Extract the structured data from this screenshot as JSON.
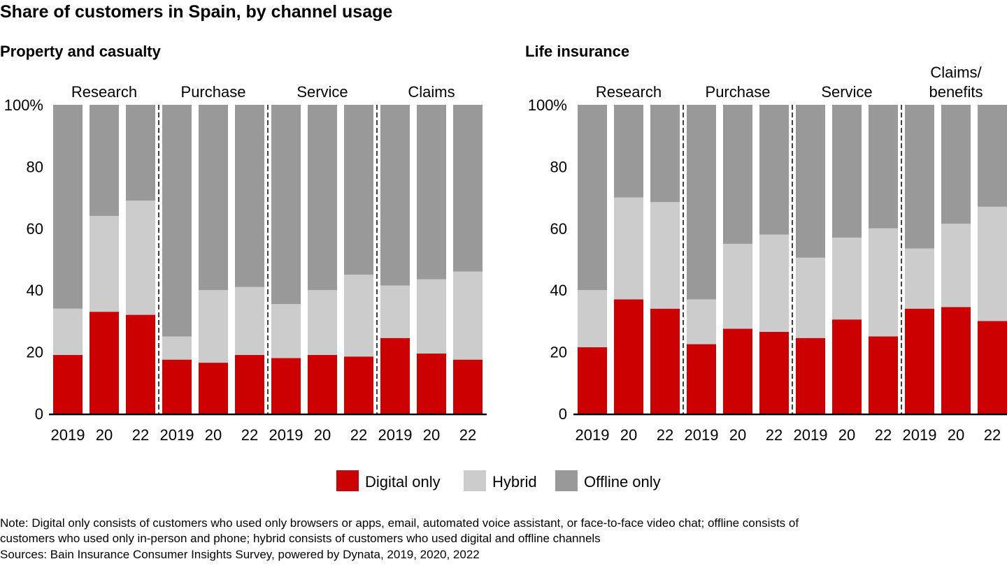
{
  "title": "Share of customers in Spain, by channel usage",
  "colors": {
    "digital": "#cc0000",
    "hybrid": "#cccccc",
    "offline": "#999999",
    "axis": "#000000"
  },
  "legend": {
    "position": "bottom-center",
    "items": [
      {
        "label": "Digital only",
        "color": "#cc0000"
      },
      {
        "label": "Hybrid",
        "color": "#cccccc"
      },
      {
        "label": "Offline only",
        "color": "#999999"
      }
    ]
  },
  "notes": {
    "note_line1": "Note: Digital only consists of customers who used only browsers or apps, email, automated voice assistant, or face-to-face video chat; offline consists of",
    "note_line2": "customers who used only in-person and phone; hybrid consists of customers who used digital and offline channels",
    "sources": "Sources: Bain Insurance Consumer Insights Survey, powered by Dynata, 2019, 2020, 2022"
  },
  "chart_data": [
    {
      "type": "bar",
      "stacked": true,
      "title": "Property and casualty",
      "ylim": [
        0,
        100
      ],
      "yticks": [
        "0",
        "20",
        "40",
        "60",
        "80",
        "100%"
      ],
      "yvalues": [
        0,
        20,
        40,
        60,
        80,
        100
      ],
      "groups": [
        {
          "label": "Research",
          "categories": [
            "2019",
            "20",
            "22"
          ],
          "digital": [
            19,
            33,
            32
          ],
          "hybrid": [
            15,
            31,
            37
          ],
          "offline": [
            66,
            36,
            31
          ]
        },
        {
          "label": "Purchase",
          "categories": [
            "2019",
            "20",
            "22"
          ],
          "digital": [
            17.5,
            16.5,
            19
          ],
          "hybrid": [
            7.5,
            23.5,
            22
          ],
          "offline": [
            75,
            60,
            59
          ]
        },
        {
          "label": "Service",
          "categories": [
            "2019",
            "20",
            "22"
          ],
          "digital": [
            18,
            19,
            18.5
          ],
          "hybrid": [
            17.5,
            21,
            26.5
          ],
          "offline": [
            64.5,
            60,
            55
          ]
        },
        {
          "label": "Claims",
          "categories": [
            "2019",
            "20",
            "22"
          ],
          "digital": [
            24.5,
            19.5,
            17.5
          ],
          "hybrid": [
            17,
            24,
            28.5
          ],
          "offline": [
            58.5,
            56.5,
            54
          ]
        }
      ]
    },
    {
      "type": "bar",
      "stacked": true,
      "title": "Life insurance",
      "ylim": [
        0,
        100
      ],
      "yticks": [
        "0",
        "20",
        "40",
        "60",
        "80",
        "100%"
      ],
      "yvalues": [
        0,
        20,
        40,
        60,
        80,
        100
      ],
      "groups": [
        {
          "label": "Research",
          "categories": [
            "2019",
            "20",
            "22"
          ],
          "digital": [
            21.5,
            37,
            34
          ],
          "hybrid": [
            18.5,
            33,
            34.5
          ],
          "offline": [
            60,
            30,
            31.5
          ]
        },
        {
          "label": "Purchase",
          "categories": [
            "2019",
            "20",
            "22"
          ],
          "digital": [
            22.5,
            27.5,
            26.5
          ],
          "hybrid": [
            14.5,
            27.5,
            31.5
          ],
          "offline": [
            63,
            45,
            42
          ]
        },
        {
          "label": "Service",
          "categories": [
            "2019",
            "20",
            "22"
          ],
          "digital": [
            24.5,
            30.5,
            25
          ],
          "hybrid": [
            26,
            26.5,
            35
          ],
          "offline": [
            49.5,
            43,
            40
          ]
        },
        {
          "label": "Claims/\nbenefits",
          "categories": [
            "2019",
            "20",
            "22"
          ],
          "digital": [
            34,
            34.5,
            30
          ],
          "hybrid": [
            19.5,
            27,
            37
          ],
          "offline": [
            46.5,
            38.5,
            33
          ]
        }
      ]
    }
  ]
}
